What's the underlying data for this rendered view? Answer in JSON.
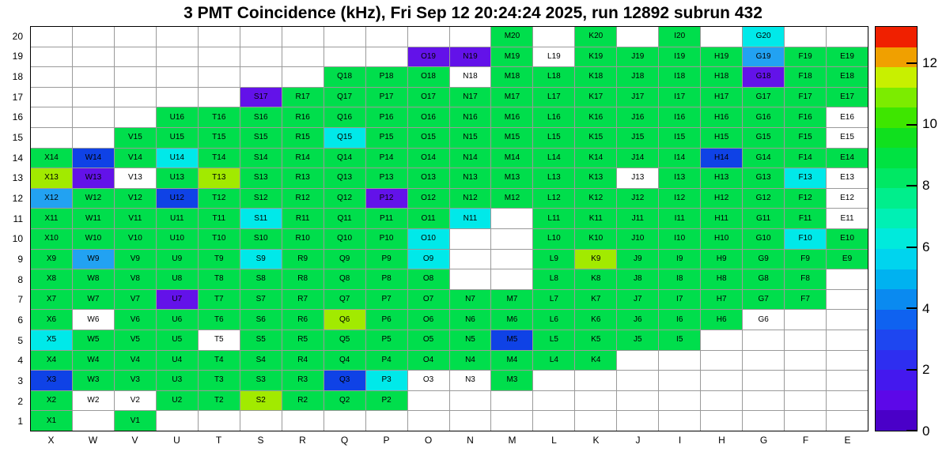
{
  "chart_data": {
    "type": "heatmap",
    "title": "3 PMT Coincidence (kHz), Fri Sep 12 20:24:24 2025, run 12892 subrun 432",
    "xlabel": "",
    "ylabel": "",
    "x_categories": [
      "X",
      "W",
      "V",
      "U",
      "T",
      "S",
      "R",
      "Q",
      "P",
      "O",
      "N",
      "M",
      "L",
      "K",
      "J",
      "I",
      "H",
      "G",
      "F",
      "E"
    ],
    "y_categories": [
      "20",
      "19",
      "18",
      "17",
      "16",
      "15",
      "14",
      "13",
      "12",
      "11",
      "10",
      "9",
      "8",
      "7",
      "6",
      "5",
      "4",
      "3",
      "2",
      "1"
    ],
    "colorbar": {
      "min": 0,
      "max": 13.2,
      "ticks": [
        "0",
        "2",
        "4",
        "6",
        "8",
        "10",
        "12"
      ],
      "tick_values": [
        0,
        2,
        4,
        6,
        8,
        10,
        12
      ],
      "band_colors_bottom_to_top": [
        "#4A00C8",
        "#5C08E8",
        "#4418EE",
        "#2E2EF0",
        "#1E46F0",
        "#0F62F0",
        "#0A8AF0",
        "#00B2F0",
        "#00D4EE",
        "#00EADC",
        "#00F0B4",
        "#00EE8C",
        "#00E864",
        "#00E242",
        "#10E01E",
        "#3EE600",
        "#7CEC00",
        "#C8F000",
        "#F0A000",
        "#F02000"
      ]
    },
    "palette": {
      "green": "#00DE4C",
      "yellow_green": "#A2EA00",
      "cyan": "#00E9E9",
      "light_blue": "#22A2F2",
      "blue": "#0F42E6",
      "purple": "#6312E9",
      "white": "#FFFFFF"
    },
    "value_estimates_by_color_kHz": {
      "white": 0,
      "purple": 1,
      "blue": 3,
      "light_blue": 4.5,
      "cyan": 6,
      "green": 8.5,
      "yellow_green": 10.5
    },
    "cells": [
      [
        "M20",
        "green"
      ],
      [
        "K20",
        "green"
      ],
      [
        "I20",
        "green"
      ],
      [
        "G20",
        "cyan"
      ],
      [
        "O19",
        "purple"
      ],
      [
        "N19",
        "purple"
      ],
      [
        "M19",
        "green"
      ],
      [
        "L19",
        "white"
      ],
      [
        "K19",
        "green"
      ],
      [
        "J19",
        "green"
      ],
      [
        "I19",
        "green"
      ],
      [
        "H19",
        "green"
      ],
      [
        "G19",
        "light_blue"
      ],
      [
        "F19",
        "green"
      ],
      [
        "E19",
        "green"
      ],
      [
        "Q18",
        "green"
      ],
      [
        "P18",
        "green"
      ],
      [
        "O18",
        "green"
      ],
      [
        "N18",
        "white"
      ],
      [
        "M18",
        "green"
      ],
      [
        "L18",
        "green"
      ],
      [
        "K18",
        "green"
      ],
      [
        "J18",
        "green"
      ],
      [
        "I18",
        "green"
      ],
      [
        "H18",
        "green"
      ],
      [
        "G18",
        "purple"
      ],
      [
        "F18",
        "green"
      ],
      [
        "E18",
        "green"
      ],
      [
        "S17",
        "purple"
      ],
      [
        "R17",
        "green"
      ],
      [
        "Q17",
        "green"
      ],
      [
        "P17",
        "green"
      ],
      [
        "O17",
        "green"
      ],
      [
        "N17",
        "green"
      ],
      [
        "M17",
        "green"
      ],
      [
        "L17",
        "green"
      ],
      [
        "K17",
        "green"
      ],
      [
        "J17",
        "green"
      ],
      [
        "I17",
        "green"
      ],
      [
        "H17",
        "green"
      ],
      [
        "G17",
        "green"
      ],
      [
        "F17",
        "green"
      ],
      [
        "E17",
        "green"
      ],
      [
        "U16",
        "green"
      ],
      [
        "T16",
        "green"
      ],
      [
        "S16",
        "green"
      ],
      [
        "R16",
        "green"
      ],
      [
        "Q16",
        "green"
      ],
      [
        "P16",
        "green"
      ],
      [
        "O16",
        "green"
      ],
      [
        "N16",
        "green"
      ],
      [
        "M16",
        "green"
      ],
      [
        "L16",
        "green"
      ],
      [
        "K16",
        "green"
      ],
      [
        "J16",
        "green"
      ],
      [
        "I16",
        "green"
      ],
      [
        "H16",
        "green"
      ],
      [
        "G16",
        "green"
      ],
      [
        "F16",
        "green"
      ],
      [
        "E16",
        "white"
      ],
      [
        "V15",
        "green"
      ],
      [
        "U15",
        "green"
      ],
      [
        "T15",
        "green"
      ],
      [
        "S15",
        "green"
      ],
      [
        "R15",
        "green"
      ],
      [
        "Q15",
        "cyan"
      ],
      [
        "P15",
        "green"
      ],
      [
        "O15",
        "green"
      ],
      [
        "N15",
        "green"
      ],
      [
        "M15",
        "green"
      ],
      [
        "L15",
        "green"
      ],
      [
        "K15",
        "green"
      ],
      [
        "J15",
        "green"
      ],
      [
        "I15",
        "green"
      ],
      [
        "H15",
        "green"
      ],
      [
        "G15",
        "green"
      ],
      [
        "F15",
        "green"
      ],
      [
        "E15",
        "white"
      ],
      [
        "X14",
        "green"
      ],
      [
        "W14",
        "blue"
      ],
      [
        "V14",
        "green"
      ],
      [
        "U14",
        "cyan"
      ],
      [
        "T14",
        "green"
      ],
      [
        "S14",
        "green"
      ],
      [
        "R14",
        "green"
      ],
      [
        "Q14",
        "green"
      ],
      [
        "P14",
        "green"
      ],
      [
        "O14",
        "green"
      ],
      [
        "N14",
        "green"
      ],
      [
        "M14",
        "green"
      ],
      [
        "L14",
        "green"
      ],
      [
        "K14",
        "green"
      ],
      [
        "J14",
        "green"
      ],
      [
        "I14",
        "green"
      ],
      [
        "H14",
        "blue"
      ],
      [
        "G14",
        "green"
      ],
      [
        "F14",
        "green"
      ],
      [
        "E14",
        "green"
      ],
      [
        "X13",
        "yellow_green"
      ],
      [
        "W13",
        "purple"
      ],
      [
        "V13",
        "white"
      ],
      [
        "U13",
        "green"
      ],
      [
        "T13",
        "yellow_green"
      ],
      [
        "S13",
        "green"
      ],
      [
        "R13",
        "green"
      ],
      [
        "Q13",
        "green"
      ],
      [
        "P13",
        "green"
      ],
      [
        "O13",
        "green"
      ],
      [
        "N13",
        "green"
      ],
      [
        "M13",
        "green"
      ],
      [
        "L13",
        "green"
      ],
      [
        "K13",
        "green"
      ],
      [
        "J13",
        "white"
      ],
      [
        "I13",
        "green"
      ],
      [
        "H13",
        "green"
      ],
      [
        "G13",
        "green"
      ],
      [
        "F13",
        "cyan"
      ],
      [
        "E13",
        "white"
      ],
      [
        "X12",
        "light_blue"
      ],
      [
        "W12",
        "green"
      ],
      [
        "V12",
        "green"
      ],
      [
        "U12",
        "blue"
      ],
      [
        "T12",
        "green"
      ],
      [
        "S12",
        "green"
      ],
      [
        "R12",
        "green"
      ],
      [
        "Q12",
        "green"
      ],
      [
        "P12",
        "purple"
      ],
      [
        "O12",
        "green"
      ],
      [
        "N12",
        "green"
      ],
      [
        "M12",
        "green"
      ],
      [
        "L12",
        "green"
      ],
      [
        "K12",
        "green"
      ],
      [
        "J12",
        "green"
      ],
      [
        "I12",
        "green"
      ],
      [
        "H12",
        "green"
      ],
      [
        "G12",
        "green"
      ],
      [
        "F12",
        "green"
      ],
      [
        "E12",
        "white"
      ],
      [
        "X11",
        "green"
      ],
      [
        "W11",
        "green"
      ],
      [
        "V11",
        "green"
      ],
      [
        "U11",
        "green"
      ],
      [
        "T11",
        "green"
      ],
      [
        "S11",
        "cyan"
      ],
      [
        "R11",
        "green"
      ],
      [
        "Q11",
        "green"
      ],
      [
        "P11",
        "green"
      ],
      [
        "O11",
        "green"
      ],
      [
        "N11",
        "cyan"
      ],
      [
        "L11",
        "green"
      ],
      [
        "K11",
        "green"
      ],
      [
        "J11",
        "green"
      ],
      [
        "I11",
        "green"
      ],
      [
        "H11",
        "green"
      ],
      [
        "G11",
        "green"
      ],
      [
        "F11",
        "green"
      ],
      [
        "E11",
        "white"
      ],
      [
        "X10",
        "green"
      ],
      [
        "W10",
        "green"
      ],
      [
        "V10",
        "green"
      ],
      [
        "U10",
        "green"
      ],
      [
        "T10",
        "green"
      ],
      [
        "S10",
        "green"
      ],
      [
        "R10",
        "green"
      ],
      [
        "Q10",
        "green"
      ],
      [
        "P10",
        "green"
      ],
      [
        "O10",
        "cyan"
      ],
      [
        "L10",
        "green"
      ],
      [
        "K10",
        "green"
      ],
      [
        "J10",
        "green"
      ],
      [
        "I10",
        "green"
      ],
      [
        "H10",
        "green"
      ],
      [
        "G10",
        "green"
      ],
      [
        "F10",
        "cyan"
      ],
      [
        "E10",
        "green"
      ],
      [
        "X9",
        "green"
      ],
      [
        "W9",
        "light_blue"
      ],
      [
        "V9",
        "green"
      ],
      [
        "U9",
        "green"
      ],
      [
        "T9",
        "green"
      ],
      [
        "S9",
        "cyan"
      ],
      [
        "R9",
        "green"
      ],
      [
        "Q9",
        "green"
      ],
      [
        "P9",
        "green"
      ],
      [
        "O9",
        "cyan"
      ],
      [
        "L9",
        "green"
      ],
      [
        "K9",
        "yellow_green"
      ],
      [
        "J9",
        "green"
      ],
      [
        "I9",
        "green"
      ],
      [
        "H9",
        "green"
      ],
      [
        "G9",
        "green"
      ],
      [
        "F9",
        "green"
      ],
      [
        "E9",
        "green"
      ],
      [
        "X8",
        "green"
      ],
      [
        "W8",
        "green"
      ],
      [
        "V8",
        "green"
      ],
      [
        "U8",
        "green"
      ],
      [
        "T8",
        "green"
      ],
      [
        "S8",
        "green"
      ],
      [
        "R8",
        "green"
      ],
      [
        "Q8",
        "green"
      ],
      [
        "P8",
        "green"
      ],
      [
        "O8",
        "green"
      ],
      [
        "L8",
        "green"
      ],
      [
        "K8",
        "green"
      ],
      [
        "J8",
        "green"
      ],
      [
        "I8",
        "green"
      ],
      [
        "H8",
        "green"
      ],
      [
        "G8",
        "green"
      ],
      [
        "F8",
        "green"
      ],
      [
        "X7",
        "green"
      ],
      [
        "W7",
        "green"
      ],
      [
        "V7",
        "green"
      ],
      [
        "U7",
        "purple"
      ],
      [
        "T7",
        "green"
      ],
      [
        "S7",
        "green"
      ],
      [
        "R7",
        "green"
      ],
      [
        "Q7",
        "green"
      ],
      [
        "P7",
        "green"
      ],
      [
        "O7",
        "green"
      ],
      [
        "N7",
        "green"
      ],
      [
        "M7",
        "green"
      ],
      [
        "L7",
        "green"
      ],
      [
        "K7",
        "green"
      ],
      [
        "J7",
        "green"
      ],
      [
        "I7",
        "green"
      ],
      [
        "H7",
        "green"
      ],
      [
        "G7",
        "green"
      ],
      [
        "F7",
        "green"
      ],
      [
        "X6",
        "green"
      ],
      [
        "W6",
        "white"
      ],
      [
        "V6",
        "green"
      ],
      [
        "U6",
        "green"
      ],
      [
        "T6",
        "green"
      ],
      [
        "S6",
        "green"
      ],
      [
        "R6",
        "green"
      ],
      [
        "Q6",
        "yellow_green"
      ],
      [
        "P6",
        "green"
      ],
      [
        "O6",
        "green"
      ],
      [
        "N6",
        "green"
      ],
      [
        "M6",
        "green"
      ],
      [
        "L6",
        "green"
      ],
      [
        "K6",
        "green"
      ],
      [
        "J6",
        "green"
      ],
      [
        "I6",
        "green"
      ],
      [
        "H6",
        "green"
      ],
      [
        "G6",
        "white"
      ],
      [
        "X5",
        "cyan"
      ],
      [
        "W5",
        "green"
      ],
      [
        "V5",
        "green"
      ],
      [
        "U5",
        "green"
      ],
      [
        "T5",
        "white"
      ],
      [
        "S5",
        "green"
      ],
      [
        "R5",
        "green"
      ],
      [
        "Q5",
        "green"
      ],
      [
        "P5",
        "green"
      ],
      [
        "O5",
        "green"
      ],
      [
        "N5",
        "green"
      ],
      [
        "M5",
        "blue"
      ],
      [
        "L5",
        "green"
      ],
      [
        "K5",
        "green"
      ],
      [
        "J5",
        "green"
      ],
      [
        "I5",
        "green"
      ],
      [
        "X4",
        "green"
      ],
      [
        "W4",
        "green"
      ],
      [
        "V4",
        "green"
      ],
      [
        "U4",
        "green"
      ],
      [
        "T4",
        "green"
      ],
      [
        "S4",
        "green"
      ],
      [
        "R4",
        "green"
      ],
      [
        "Q4",
        "green"
      ],
      [
        "P4",
        "green"
      ],
      [
        "O4",
        "green"
      ],
      [
        "N4",
        "green"
      ],
      [
        "M4",
        "green"
      ],
      [
        "L4",
        "green"
      ],
      [
        "K4",
        "green"
      ],
      [
        "X3",
        "blue"
      ],
      [
        "W3",
        "green"
      ],
      [
        "V3",
        "green"
      ],
      [
        "U3",
        "green"
      ],
      [
        "T3",
        "green"
      ],
      [
        "S3",
        "green"
      ],
      [
        "R3",
        "green"
      ],
      [
        "Q3",
        "blue"
      ],
      [
        "P3",
        "cyan"
      ],
      [
        "O3",
        "white"
      ],
      [
        "N3",
        "white"
      ],
      [
        "M3",
        "green"
      ],
      [
        "X2",
        "green"
      ],
      [
        "W2",
        "white"
      ],
      [
        "V2",
        "white"
      ],
      [
        "U2",
        "green"
      ],
      [
        "T2",
        "green"
      ],
      [
        "S2",
        "yellow_green"
      ],
      [
        "R2",
        "green"
      ],
      [
        "Q2",
        "green"
      ],
      [
        "P2",
        "green"
      ],
      [
        "X1",
        "green"
      ],
      [
        "V1",
        "green"
      ]
    ]
  }
}
